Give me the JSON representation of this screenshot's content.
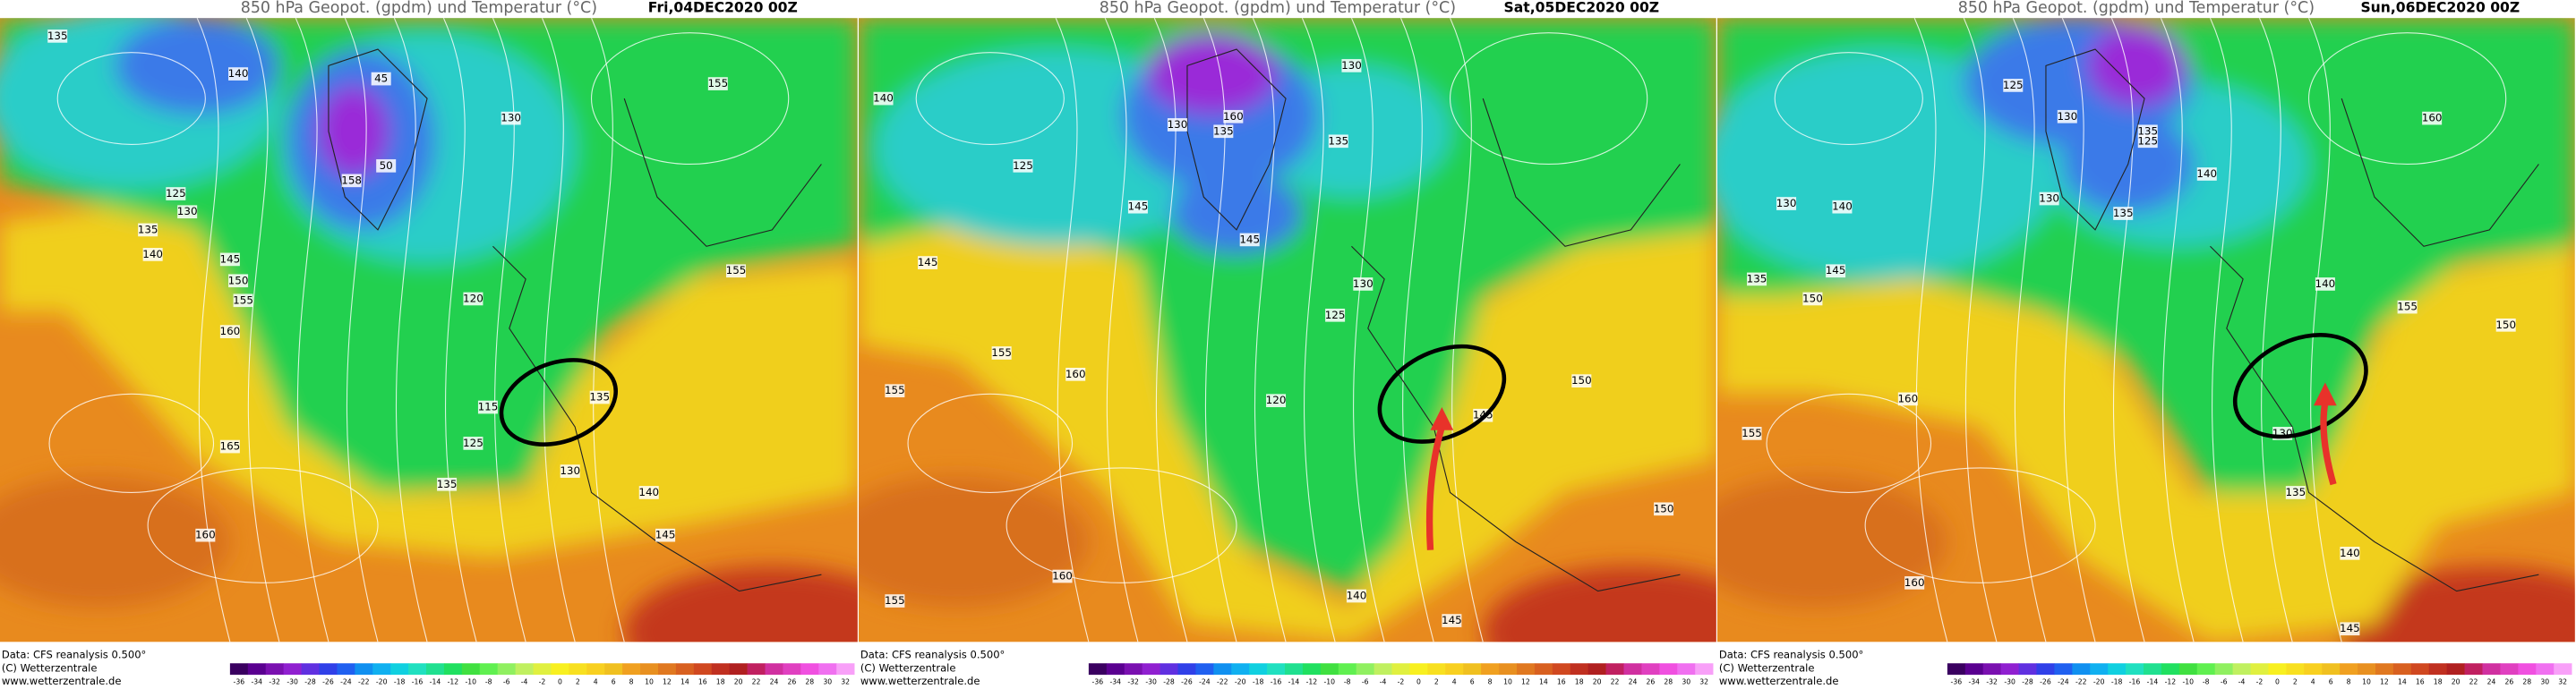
{
  "panels": [
    {
      "title": "850 hPa Geopot. (gpdm) und Temperatur (°C)",
      "date": "Fri,04DEC2020 00Z",
      "source": "Data: CFS reanalysis 0.500°",
      "copyright": "(C) Wetterzentrale",
      "url": "www.wetterzentrale.de",
      "contour_labels": [
        "135",
        "140",
        "45",
        "130",
        "158",
        "50",
        "125",
        "130",
        "135",
        "140",
        "145",
        "150",
        "155",
        "160",
        "165",
        "120",
        "115",
        "125",
        "130",
        "135",
        "135",
        "140",
        "145",
        "155",
        "160",
        "155"
      ]
    },
    {
      "title": "850 hPa Geopot. (gpdm) und Temperatur (°C)",
      "date": "Sat,05DEC2020 00Z",
      "source": "Data: CFS reanalysis 0.500°",
      "copyright": "(C) Wetterzentrale",
      "url": "www.wetterzentrale.de",
      "contour_labels": [
        "140",
        "125",
        "130",
        "135",
        "145",
        "145",
        "130",
        "135",
        "160",
        "155",
        "155",
        "160",
        "120",
        "125",
        "130",
        "145",
        "150",
        "160",
        "155",
        "140",
        "145",
        "150",
        "145"
      ]
    },
    {
      "title": "850 hPa Geopot. (gpdm) und Temperatur (°C)",
      "date": "Sun,06DEC2020 00Z",
      "source": "Data: CFS reanalysis 0.500°",
      "copyright": "(C) Wetterzentrale",
      "url": "www.wetterzentrale.de",
      "contour_labels": [
        "125",
        "130",
        "135",
        "125",
        "140",
        "130",
        "135",
        "150",
        "145",
        "160",
        "155",
        "140",
        "135",
        "130",
        "160",
        "150",
        "155",
        "140",
        "135",
        "130",
        "160",
        "145",
        "140"
      ]
    }
  ],
  "colorbar": {
    "labels": [
      -36,
      -34,
      -32,
      -30,
      -28,
      -26,
      -24,
      -22,
      -20,
      -18,
      -16,
      -14,
      -12,
      -10,
      -8,
      -6,
      -4,
      -2,
      0,
      2,
      4,
      6,
      8,
      10,
      12,
      14,
      16,
      18,
      20,
      22,
      24,
      26,
      28,
      30,
      32
    ]
  }
}
